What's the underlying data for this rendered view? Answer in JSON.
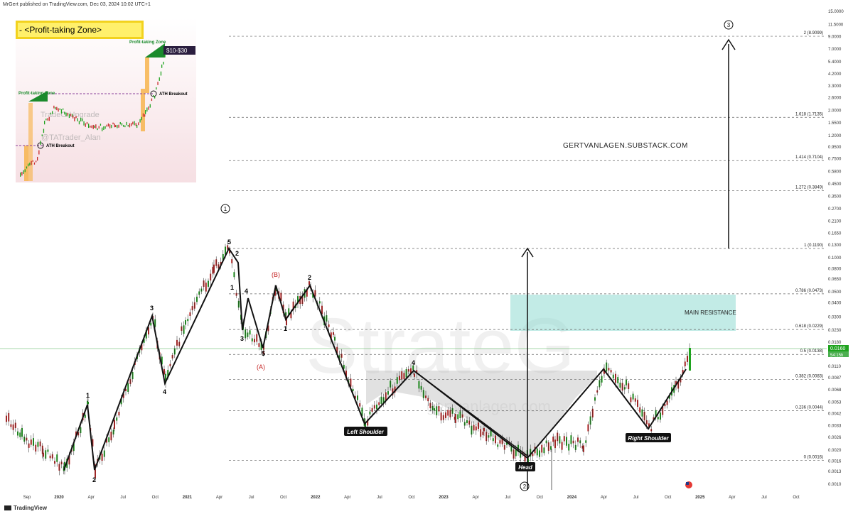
{
  "header": {
    "publisher": "MrGert published on TradingView.com, Dec 03, 2024 10:02 UTC+1"
  },
  "footer": {
    "brand": "TradingView"
  },
  "watermarks": {
    "big": "StrateG",
    "url": "gertvanlagen.com"
  },
  "site": "GERTVANLAGEN.SUBSTACK.COM",
  "colors": {
    "up": "#1fa31f",
    "down": "#c62828",
    "resistance": "#8fdad1",
    "accent_green": "#1b8a2c"
  },
  "inset": {
    "title": "- <Profit-taking Zone>",
    "zone_label": "Profit-taking Zone",
    "target_label": "$10-$30",
    "breakout_label": "ATH Breakout",
    "watermark1": "TradeOrUpgrade",
    "watermark2": "@TATrader_Alan"
  },
  "chart_data": {
    "type": "candlestick",
    "y_scale": "log",
    "y_ticks": [
      "15.0000",
      "11.5000",
      "9.0000",
      "7.0000",
      "5.4000",
      "4.2000",
      "3.3000",
      "2.6000",
      "2.0000",
      "1.5500",
      "1.2000",
      "0.9500",
      "0.7500",
      "0.5800",
      "0.4500",
      "0.3500",
      "0.2700",
      "0.2100",
      "0.1650",
      "0.1300",
      "0.1000",
      "0.0800",
      "0.0650",
      "0.0500",
      "0.0400",
      "0.0300",
      "0.0230",
      "0.0180",
      "0.0140",
      "0.0110",
      "0.0087",
      "0.0068",
      "0.0053",
      "0.0042",
      "0.0033",
      "0.0026",
      "0.0020",
      "0.0016",
      "0.0013",
      "0.0010"
    ],
    "x_ticks": [
      "Sep",
      "2020",
      "Apr",
      "Jul",
      "Oct",
      "2021",
      "Apr",
      "Jul",
      "Oct",
      "2022",
      "Apr",
      "Jul",
      "Oct",
      "2023",
      "Apr",
      "Jul",
      "Oct",
      "2024",
      "Apr",
      "Jul",
      "Oct",
      "2025",
      "Apr",
      "Jul",
      "Oct"
    ],
    "current_price": "0.0160",
    "current_sub": "54:15h",
    "fib_levels": [
      {
        "label": "2 (8.9099)",
        "value": 8.9099
      },
      {
        "label": "1.618 (1.7135)",
        "value": 1.7135
      },
      {
        "label": "1.414 (0.7104)",
        "value": 0.7104
      },
      {
        "label": "1.272 (0.3849)",
        "value": 0.3849
      },
      {
        "label": "1 (0.1190)",
        "value": 0.119
      },
      {
        "label": "0.786 (0.0473)",
        "value": 0.0473
      },
      {
        "label": "0.618 (0.0229)",
        "value": 0.0229
      },
      {
        "label": "0.5 (0.0138)",
        "value": 0.0138
      },
      {
        "label": "0.382 (0.0083)",
        "value": 0.0083
      },
      {
        "label": "0.236 (0.0044)",
        "value": 0.0044
      },
      {
        "label": "0 (0.0016)",
        "value": 0.0016
      }
    ],
    "resistance_label": "MAIN RESISTANCE",
    "pattern_labels": {
      "left_shoulder": "Left Shoulder",
      "head": "Head",
      "right_shoulder": "Right Shoulder"
    },
    "wave_labels": {
      "cycle1": "1",
      "cycle2": "2",
      "cycle3": "3",
      "w1": "1",
      "w2": "2",
      "w3": "3",
      "w4": "4",
      "w5": "5",
      "a1": "1",
      "a2": "2",
      "a3": "3",
      "a4": "4",
      "a5": "5",
      "b1": "1",
      "b2": "2",
      "b4": "4",
      "cA": "(A)",
      "cB": "(B)"
    },
    "wave_points": [
      [
        0.0016,
        "Sep"
      ],
      [
        0.0055,
        "2020"
      ],
      [
        0.0013,
        "Apr"
      ]
    ]
  }
}
